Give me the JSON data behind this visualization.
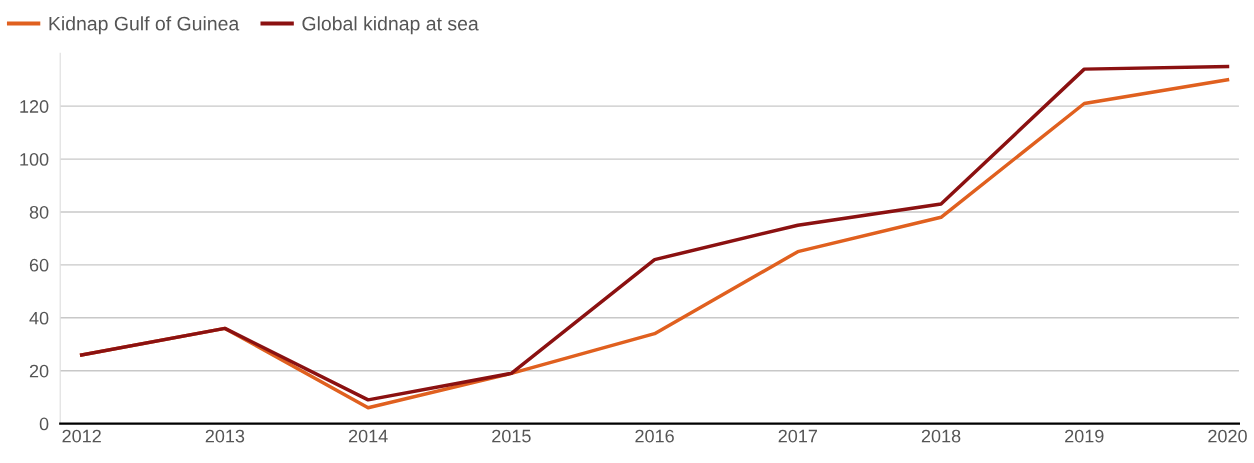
{
  "chart_data": {
    "type": "line",
    "x": [
      2012,
      2013,
      2014,
      2015,
      2016,
      2017,
      2018,
      2019,
      2020
    ],
    "series": [
      {
        "name": "Kidnap Gulf of Guinea",
        "color": "#e0601f",
        "values": [
          26,
          36,
          6,
          19,
          34,
          65,
          78,
          121,
          130
        ]
      },
      {
        "name": "Global kidnap at sea",
        "color": "#8b1111",
        "values": [
          26,
          36,
          9,
          19,
          62,
          75,
          83,
          134,
          135
        ]
      }
    ],
    "xlim": [
      2011.85,
      2020.08
    ],
    "xticks": [
      2012,
      2013,
      2014,
      2015,
      2016,
      2017,
      2018,
      2019,
      2020
    ],
    "yticks": [
      0,
      20,
      40,
      60,
      80,
      100,
      120
    ],
    "ylim": [
      0,
      140
    ],
    "grid": "y",
    "legend": "top left",
    "marker": "none",
    "line_style": "solid"
  }
}
